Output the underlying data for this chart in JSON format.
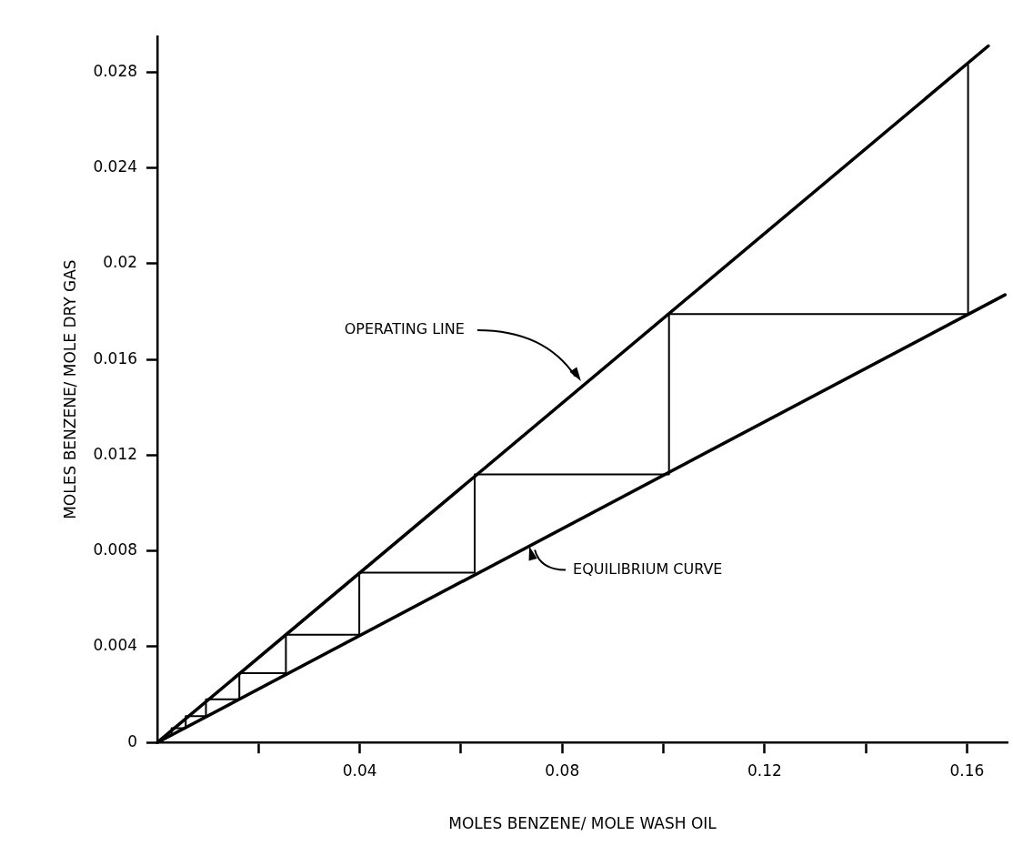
{
  "chart_data": {
    "type": "line",
    "xlabel": "MOLES BENZENE/ MOLE WASH OIL",
    "ylabel": "MOLES BENZENE/ MOLE DRY GAS",
    "xlim": [
      0,
      0.168
    ],
    "ylim": [
      0,
      0.0295
    ],
    "xticks": [
      {
        "value": 0.02,
        "label": null
      },
      0.04,
      {
        "value": 0.06,
        "label": null
      },
      0.08,
      {
        "value": 0.1,
        "label": null
      },
      0.12,
      {
        "value": 0.14,
        "label": null
      },
      0.16
    ],
    "yticks": [
      0,
      0.004,
      0.008,
      0.012,
      0.016,
      0.02,
      0.024,
      0.028
    ],
    "legend": false,
    "marker": "none",
    "line_style": "solid",
    "series": [
      {
        "color": "#000000",
        "x": [
          0,
          0.1642
        ],
        "values": [
          0,
          0.0291
        ]
      },
      {
        "color": "#000000",
        "x": [
          0,
          0.1675
        ],
        "values": [
          0,
          0.0187
        ]
      },
      {
        "color": "#000000",
        "x": [
          0.1602,
          0.1602,
          0.1011,
          0.1011,
          0.0627,
          0.0627,
          0.0399,
          0.0399,
          0.0254,
          0.0254,
          0.0162,
          0.0162,
          0.0096,
          0.0096,
          0.0056,
          0.0056,
          0.0028,
          0.0028
        ],
        "values": [
          0.0283,
          0.0179,
          0.0179,
          0.0112,
          0.0112,
          0.0071,
          0.0071,
          0.0045,
          0.0045,
          0.0029,
          0.0029,
          0.0018,
          0.0018,
          0.0011,
          0.0011,
          0.0006,
          0.0006,
          0.0003
        ]
      }
    ],
    "annotations": [
      {
        "text": "OPERATING LINE",
        "x": 0.0837,
        "y": 0.0151
      },
      {
        "text": "EQUILIBRIUM CURVE",
        "x": 0.0735,
        "y": 0.0082
      }
    ]
  }
}
